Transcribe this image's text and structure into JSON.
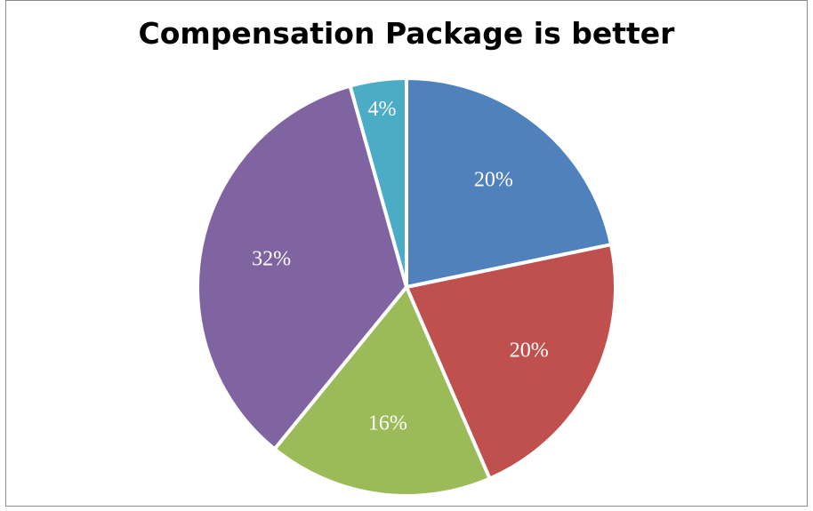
{
  "chart_data": {
    "type": "pie",
    "title": "Compensation Package is better",
    "values": [
      20,
      20,
      16,
      32,
      4
    ],
    "labels": [
      "20%",
      "20%",
      "16%",
      "32%",
      "4%"
    ],
    "colors": [
      "#4f81bd",
      "#c0504d",
      "#9bbb59",
      "#8064a2",
      "#4bacc6"
    ],
    "legend": "none"
  }
}
